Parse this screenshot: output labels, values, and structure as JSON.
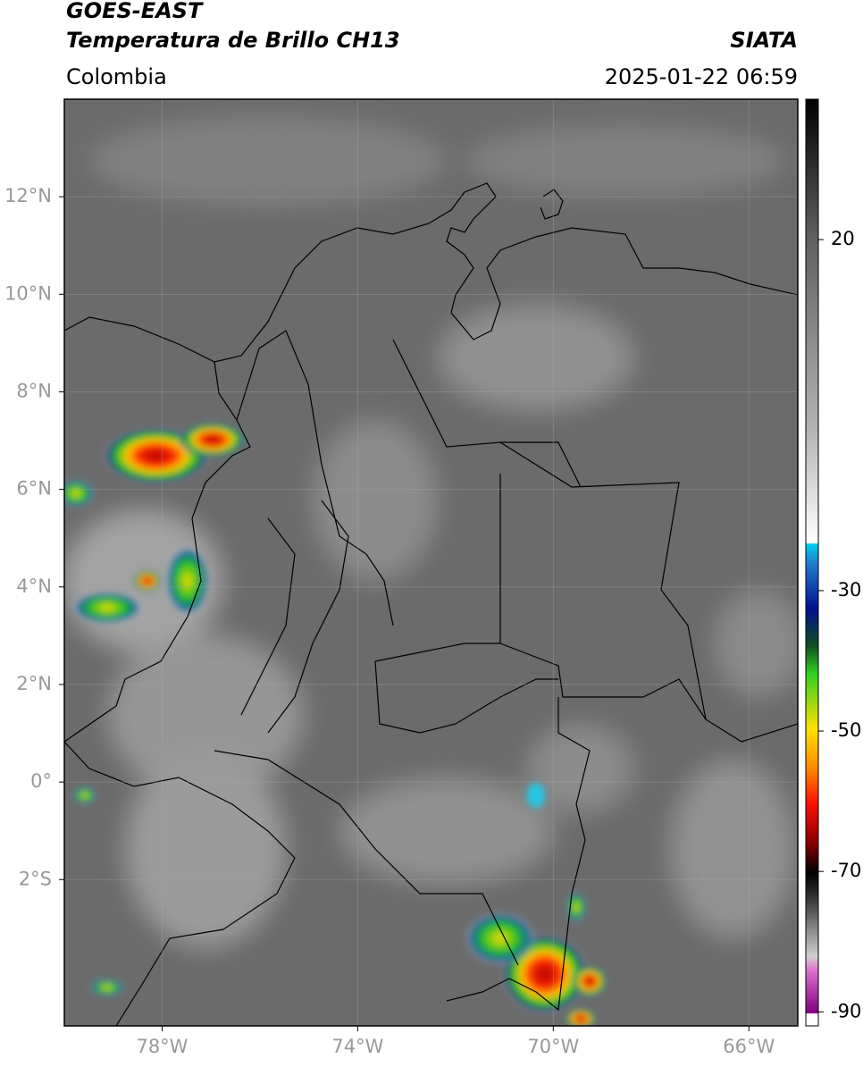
{
  "header": {
    "satellite": "GOES-EAST",
    "product": "Temperatura de Brillo CH13",
    "region": "Colombia",
    "source": "SIATA",
    "datetime": "2025-01-22 06:59"
  },
  "map": {
    "xlim": [
      -80,
      -65
    ],
    "ylim": [
      -5,
      14
    ],
    "xticks": [
      {
        "value": -78,
        "label": "78°W"
      },
      {
        "value": -74,
        "label": "74°W"
      },
      {
        "value": -70,
        "label": "70°W"
      },
      {
        "value": -66,
        "label": "66°W"
      }
    ],
    "yticks": [
      {
        "value": 12,
        "label": "12°N"
      },
      {
        "value": 10,
        "label": "10°N"
      },
      {
        "value": 8,
        "label": "8°N"
      },
      {
        "value": 6,
        "label": "6°N"
      },
      {
        "value": 4,
        "label": "4°N"
      },
      {
        "value": 2,
        "label": "2°N"
      },
      {
        "value": 0,
        "label": "0°"
      },
      {
        "value": -2,
        "label": "2°S"
      }
    ]
  },
  "colorbar": {
    "lim": [
      -92,
      40
    ],
    "ticks": [
      20,
      -30,
      -50,
      -70,
      -90
    ]
  }
}
